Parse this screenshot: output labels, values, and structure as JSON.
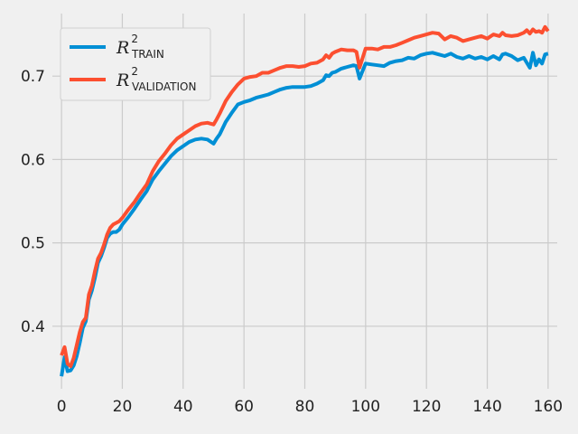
{
  "chart_data": {
    "type": "line",
    "title": "",
    "xlabel": "",
    "ylabel": "",
    "xlim": [
      -3,
      163
    ],
    "ylim": [
      0.325,
      0.775
    ],
    "xticks": [
      0,
      20,
      40,
      60,
      80,
      100,
      120,
      140,
      160
    ],
    "yticks": [
      0.4,
      0.5,
      0.6,
      0.7
    ],
    "grid": true,
    "legend_position": "top-left",
    "series": [
      {
        "name": "R",
        "name_sup": "2",
        "name_sub": "TRAIN",
        "color": "#008fd5",
        "x": [
          0,
          1,
          2,
          3,
          4,
          5,
          6,
          7,
          8,
          9,
          10,
          11,
          12,
          13,
          14,
          15,
          16,
          17,
          18,
          19,
          20,
          22,
          24,
          26,
          28,
          30,
          32,
          34,
          36,
          38,
          40,
          42,
          44,
          46,
          48,
          50,
          51,
          52,
          54,
          56,
          58,
          60,
          62,
          64,
          66,
          68,
          70,
          72,
          74,
          76,
          78,
          80,
          82,
          84,
          86,
          87,
          88,
          89,
          90,
          92,
          94,
          96,
          97,
          98,
          100,
          102,
          104,
          106,
          108,
          110,
          112,
          114,
          116,
          118,
          120,
          122,
          124,
          126,
          128,
          130,
          132,
          134,
          136,
          138,
          140,
          142,
          144,
          145,
          146,
          148,
          150,
          152,
          153,
          154,
          155,
          156,
          157,
          158,
          159,
          160
        ],
        "y": [
          0.34,
          0.363,
          0.346,
          0.347,
          0.353,
          0.364,
          0.38,
          0.398,
          0.406,
          0.432,
          0.443,
          0.458,
          0.476,
          0.484,
          0.494,
          0.506,
          0.511,
          0.513,
          0.513,
          0.516,
          0.522,
          0.531,
          0.541,
          0.552,
          0.562,
          0.576,
          0.586,
          0.595,
          0.604,
          0.611,
          0.616,
          0.621,
          0.624,
          0.625,
          0.624,
          0.619,
          0.625,
          0.63,
          0.645,
          0.656,
          0.666,
          0.669,
          0.671,
          0.674,
          0.676,
          0.678,
          0.681,
          0.684,
          0.686,
          0.687,
          0.687,
          0.687,
          0.688,
          0.691,
          0.695,
          0.701,
          0.7,
          0.704,
          0.705,
          0.709,
          0.711,
          0.713,
          0.712,
          0.697,
          0.715,
          0.714,
          0.713,
          0.712,
          0.716,
          0.718,
          0.719,
          0.722,
          0.721,
          0.725,
          0.727,
          0.728,
          0.726,
          0.724,
          0.727,
          0.723,
          0.721,
          0.724,
          0.721,
          0.723,
          0.72,
          0.724,
          0.72,
          0.726,
          0.727,
          0.724,
          0.719,
          0.722,
          0.716,
          0.71,
          0.728,
          0.713,
          0.72,
          0.715,
          0.726,
          0.727
        ]
      },
      {
        "name": "R",
        "name_sup": "2",
        "name_sub": "VALIDATION",
        "color": "#fc4f30",
        "x": [
          0,
          1,
          2,
          3,
          4,
          5,
          6,
          7,
          8,
          9,
          10,
          11,
          12,
          13,
          14,
          15,
          16,
          17,
          18,
          19,
          20,
          22,
          24,
          26,
          28,
          30,
          32,
          34,
          36,
          38,
          40,
          42,
          44,
          46,
          48,
          50,
          51,
          52,
          54,
          56,
          58,
          60,
          62,
          64,
          66,
          68,
          70,
          72,
          74,
          76,
          78,
          80,
          82,
          84,
          86,
          87,
          88,
          89,
          90,
          92,
          94,
          96,
          97,
          98,
          100,
          102,
          104,
          106,
          108,
          110,
          112,
          114,
          116,
          118,
          120,
          122,
          124,
          126,
          128,
          130,
          132,
          134,
          136,
          138,
          140,
          142,
          144,
          145,
          146,
          148,
          150,
          152,
          153,
          154,
          155,
          156,
          157,
          158,
          159,
          160
        ],
        "y": [
          0.365,
          0.375,
          0.355,
          0.352,
          0.362,
          0.377,
          0.393,
          0.405,
          0.41,
          0.438,
          0.449,
          0.466,
          0.481,
          0.488,
          0.498,
          0.51,
          0.518,
          0.522,
          0.524,
          0.526,
          0.53,
          0.54,
          0.549,
          0.56,
          0.57,
          0.586,
          0.598,
          0.607,
          0.617,
          0.625,
          0.63,
          0.635,
          0.64,
          0.643,
          0.644,
          0.642,
          0.648,
          0.655,
          0.67,
          0.681,
          0.69,
          0.697,
          0.699,
          0.7,
          0.704,
          0.704,
          0.707,
          0.71,
          0.712,
          0.712,
          0.711,
          0.712,
          0.715,
          0.716,
          0.72,
          0.725,
          0.722,
          0.727,
          0.729,
          0.732,
          0.731,
          0.731,
          0.729,
          0.71,
          0.733,
          0.733,
          0.732,
          0.735,
          0.735,
          0.737,
          0.74,
          0.743,
          0.746,
          0.748,
          0.75,
          0.752,
          0.751,
          0.744,
          0.748,
          0.746,
          0.742,
          0.744,
          0.746,
          0.748,
          0.745,
          0.75,
          0.748,
          0.752,
          0.749,
          0.748,
          0.749,
          0.752,
          0.755,
          0.751,
          0.756,
          0.753,
          0.754,
          0.752,
          0.759,
          0.754
        ]
      }
    ]
  }
}
